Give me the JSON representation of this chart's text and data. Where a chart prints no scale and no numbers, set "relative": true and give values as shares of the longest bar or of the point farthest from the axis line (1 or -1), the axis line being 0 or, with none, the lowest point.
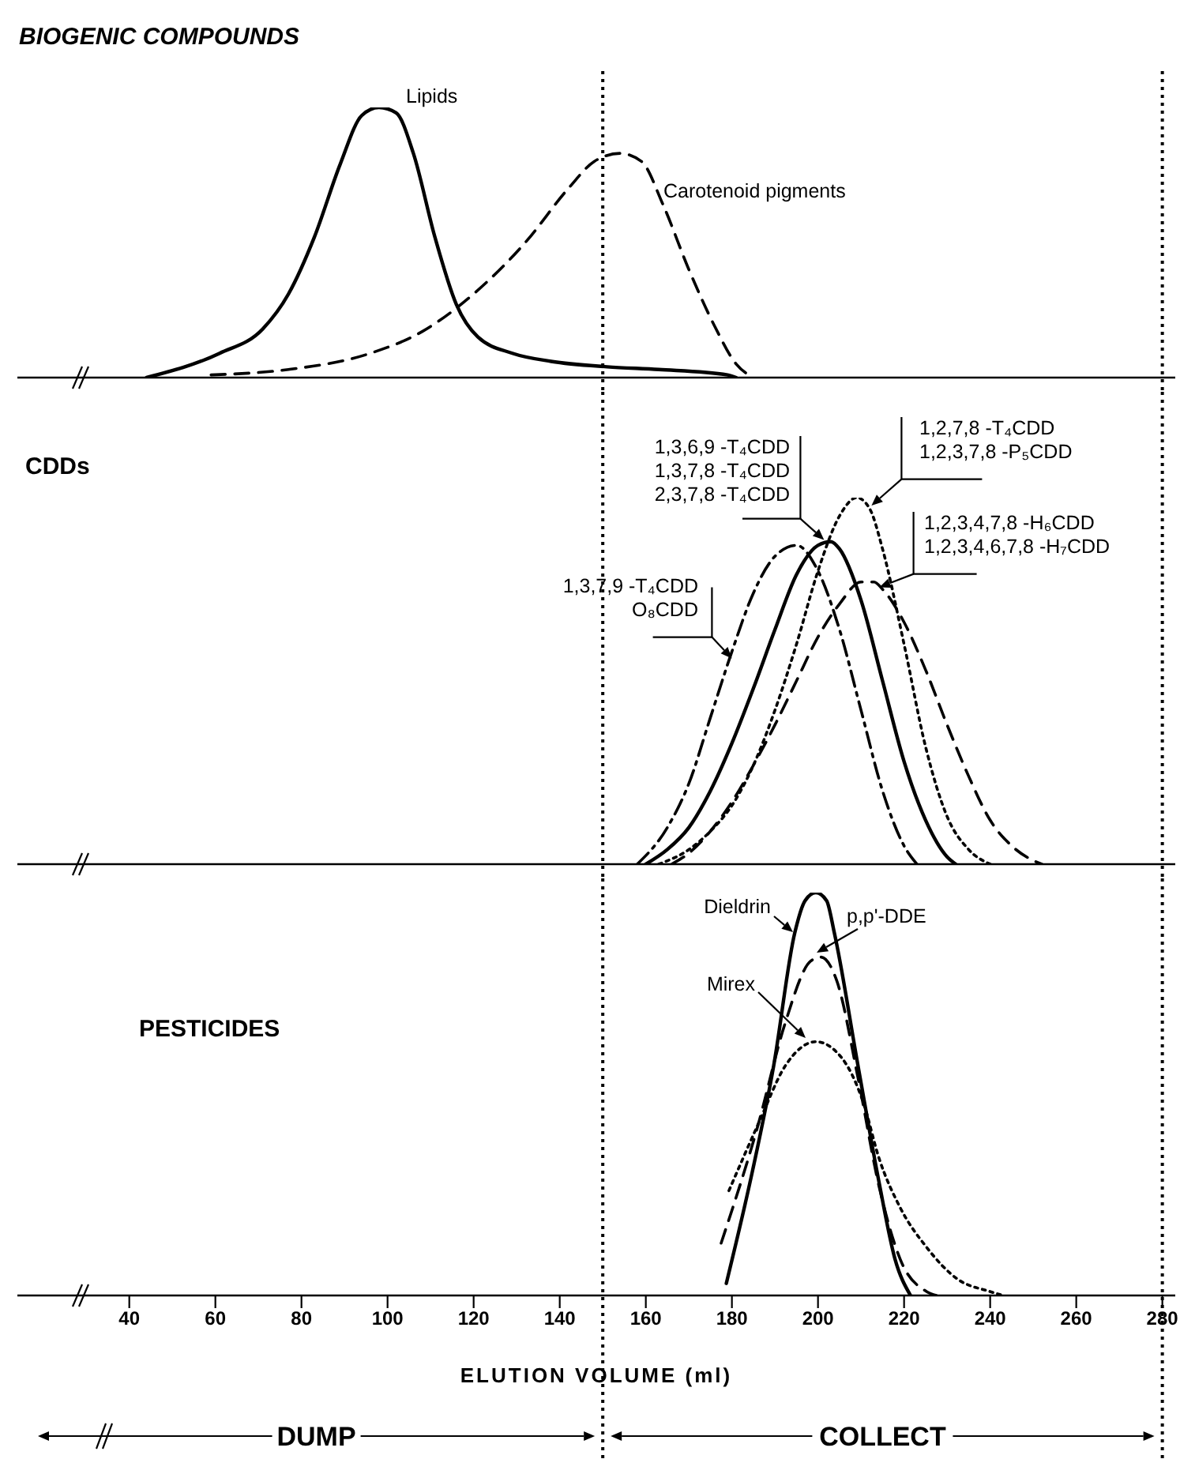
{
  "chart_data": [
    {
      "type": "line",
      "title": "BIOGENIC COMPOUNDS",
      "relative": true,
      "xlim": [
        14,
        283
      ],
      "xticks": [
        40,
        60,
        80,
        100,
        120,
        140,
        160,
        180,
        200,
        220,
        240,
        260,
        280
      ],
      "tick_labels": false,
      "ref_lines": [
        {
          "axis": "x",
          "value": 150,
          "line_style": "dotted"
        },
        {
          "axis": "x",
          "value": 280,
          "line_style": "dotted"
        }
      ],
      "series": [
        {
          "name": "Lipids",
          "color": "#000000",
          "line_style": "solid",
          "x": [
            44,
            61,
            71,
            77,
            83,
            89,
            94,
            98,
            102,
            106,
            111,
            116,
            121,
            129,
            138,
            151,
            163,
            179,
            181
          ],
          "values": [
            0,
            0.09,
            0.18,
            0.31,
            0.52,
            0.79,
            0.97,
            1,
            0.98,
            0.83,
            0.52,
            0.27,
            0.15,
            0.09,
            0.06,
            0.04,
            0.03,
            0.01,
            0
          ]
        },
        {
          "name": "Carotenoid pigments",
          "color": "#000000",
          "line_style": "dashed",
          "x": [
            59,
            77,
            96,
            108,
            120,
            132,
            142,
            148,
            154,
            159,
            164,
            170,
            176,
            181,
            185
          ],
          "values": [
            0.01,
            0.03,
            0.09,
            0.17,
            0.31,
            0.5,
            0.7,
            0.8,
            0.83,
            0.8,
            0.64,
            0.4,
            0.19,
            0.05,
            0
          ]
        }
      ]
    },
    {
      "type": "line",
      "title": "CDDs",
      "relative": true,
      "xlim": [
        14,
        283
      ],
      "xticks": [
        40,
        60,
        80,
        100,
        120,
        140,
        160,
        180,
        200,
        220,
        240,
        260,
        280
      ],
      "tick_labels": false,
      "ref_lines": [
        {
          "axis": "x",
          "value": 150,
          "line_style": "dotted"
        },
        {
          "axis": "x",
          "value": 280,
          "line_style": "dotted"
        }
      ],
      "series": [
        {
          "name": "1,3,7,9 -T₄CDD\nO₈CDD",
          "color": "#000000",
          "line_style": "dashdot",
          "x": [
            158,
            165,
            170,
            175,
            180,
            185,
            190,
            195,
            200,
            205,
            210,
            215,
            220,
            223
          ],
          "values": [
            0,
            0.1,
            0.22,
            0.4,
            0.58,
            0.74,
            0.84,
            0.87,
            0.8,
            0.64,
            0.42,
            0.2,
            0.05,
            0
          ]
        },
        {
          "name": "1,3,6,9 -T₄CDD\n1,3,7,8 -T₄CDD\n2,3,7,8 -T₄CDD",
          "color": "#000000",
          "line_style": "solid",
          "x": [
            160,
            165,
            170,
            175,
            180,
            185,
            190,
            195,
            200,
            203,
            205,
            210,
            215,
            220,
            225,
            230,
            232
          ],
          "values": [
            0,
            0.04,
            0.1,
            0.2,
            0.33,
            0.48,
            0.64,
            0.79,
            0.87,
            0.88,
            0.86,
            0.72,
            0.5,
            0.28,
            0.12,
            0.02,
            0
          ]
        },
        {
          "name": "1,2,7,8 -T₄CDD\n1,2,3,7,8 -P₅CDD",
          "color": "#000000",
          "line_style": "dotted",
          "x": [
            163,
            170,
            175,
            180,
            185,
            190,
            195,
            200,
            205,
            209,
            212,
            215,
            220,
            225,
            230,
            235,
            240
          ],
          "values": [
            0,
            0.04,
            0.09,
            0.16,
            0.27,
            0.42,
            0.6,
            0.8,
            0.95,
            1,
            0.97,
            0.86,
            0.6,
            0.32,
            0.13,
            0.04,
            0
          ]
        },
        {
          "name": "1,2,3,4,7,8 -H₆CDD\n1,2,3,4,6,7,8 -H₇CDD",
          "color": "#000000",
          "line_style": "dashed",
          "x": [
            166,
            170,
            175,
            180,
            185,
            190,
            195,
            200,
            205,
            210,
            213,
            215,
            220,
            225,
            230,
            235,
            240,
            245,
            250,
            252
          ],
          "values": [
            0,
            0.03,
            0.09,
            0.17,
            0.27,
            0.38,
            0.5,
            0.62,
            0.71,
            0.77,
            0.77,
            0.75,
            0.66,
            0.53,
            0.38,
            0.24,
            0.12,
            0.05,
            0.01,
            0
          ]
        }
      ]
    },
    {
      "type": "line",
      "title": "PESTICIDES",
      "xlabel": "ELUTION VOLUME (ml)",
      "relative": true,
      "xlim": [
        14,
        283
      ],
      "xticks": [
        40,
        60,
        80,
        100,
        120,
        140,
        160,
        180,
        200,
        220,
        240,
        260,
        280
      ],
      "tick_labels": "x",
      "ref_lines": [
        {
          "axis": "x",
          "value": 150,
          "line_style": "dotted"
        },
        {
          "axis": "x",
          "value": 280,
          "line_style": "dotted"
        }
      ],
      "annotations": [
        "DUMP",
        "COLLECT"
      ],
      "series": [
        {
          "name": "Dieldrin",
          "color": "#000000",
          "line_style": "solid",
          "x": [
            178.7,
            184.8,
            189.7,
            194.6,
            197,
            199.5,
            202,
            203.8,
            209.3,
            214.2,
            217.9,
            221.5
          ],
          "values": [
            0.03,
            0.31,
            0.57,
            0.9,
            0.98,
            1,
            0.98,
            0.9,
            0.57,
            0.28,
            0.09,
            0
          ]
        },
        {
          "name": "p,p'-DDE",
          "color": "#000000",
          "line_style": "dashed",
          "x": [
            177.5,
            186,
            192.2,
            198.3,
            200.7,
            204.4,
            209.3,
            214.2,
            219.1,
            225.2,
            227.5
          ],
          "values": [
            0.13,
            0.42,
            0.67,
            0.83,
            0.84,
            0.78,
            0.54,
            0.27,
            0.09,
            0.01,
            0
          ]
        },
        {
          "name": "Mirex",
          "color": "#000000",
          "line_style": "dotted",
          "x": [
            179.3,
            186.3,
            192.4,
            199.5,
            205.5,
            210.5,
            214.2,
            219,
            225.2,
            232.5,
            239.9,
            243
          ],
          "values": [
            0.26,
            0.43,
            0.57,
            0.63,
            0.59,
            0.48,
            0.34,
            0.22,
            0.12,
            0.04,
            0.01,
            0
          ]
        }
      ]
    }
  ]
}
